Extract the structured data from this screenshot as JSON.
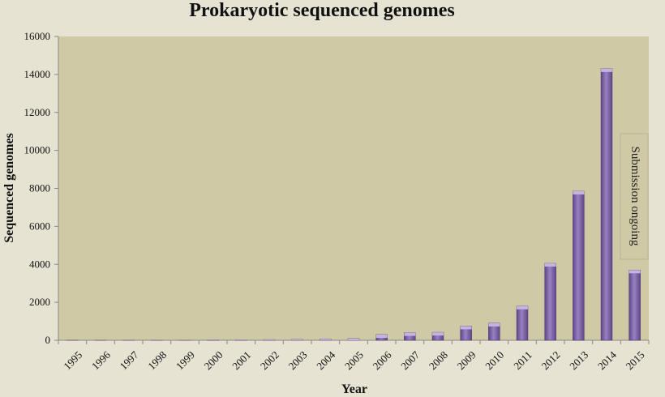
{
  "chart_data": {
    "type": "bar",
    "title": "Prokaryotic sequenced genomes",
    "xlabel": "Year",
    "ylabel": "Sequenced genomes",
    "ylim": [
      0,
      16000
    ],
    "yticks": [
      0,
      2000,
      4000,
      6000,
      8000,
      10000,
      12000,
      14000,
      16000
    ],
    "grid": false,
    "legend": "none",
    "categories": [
      "1995",
      "1996",
      "1997",
      "1998",
      "1999",
      "2000",
      "2001",
      "2002",
      "2003",
      "2004",
      "2005",
      "2006",
      "2007",
      "2008",
      "2009",
      "2010",
      "2011",
      "2012",
      "2013",
      "2014",
      "2015"
    ],
    "values": [
      2,
      4,
      6,
      8,
      10,
      25,
      30,
      35,
      45,
      70,
      90,
      300,
      400,
      420,
      750,
      900,
      1800,
      4050,
      7850,
      14300,
      3700
    ],
    "annotation": "Submission ongoing",
    "colors": {
      "background": "#e6e3d2",
      "plot_area": "#cfc9a6",
      "bar": "#8a6fb0",
      "bar_dark": "#5e4886",
      "bar_light": "#c6b4e0"
    }
  }
}
